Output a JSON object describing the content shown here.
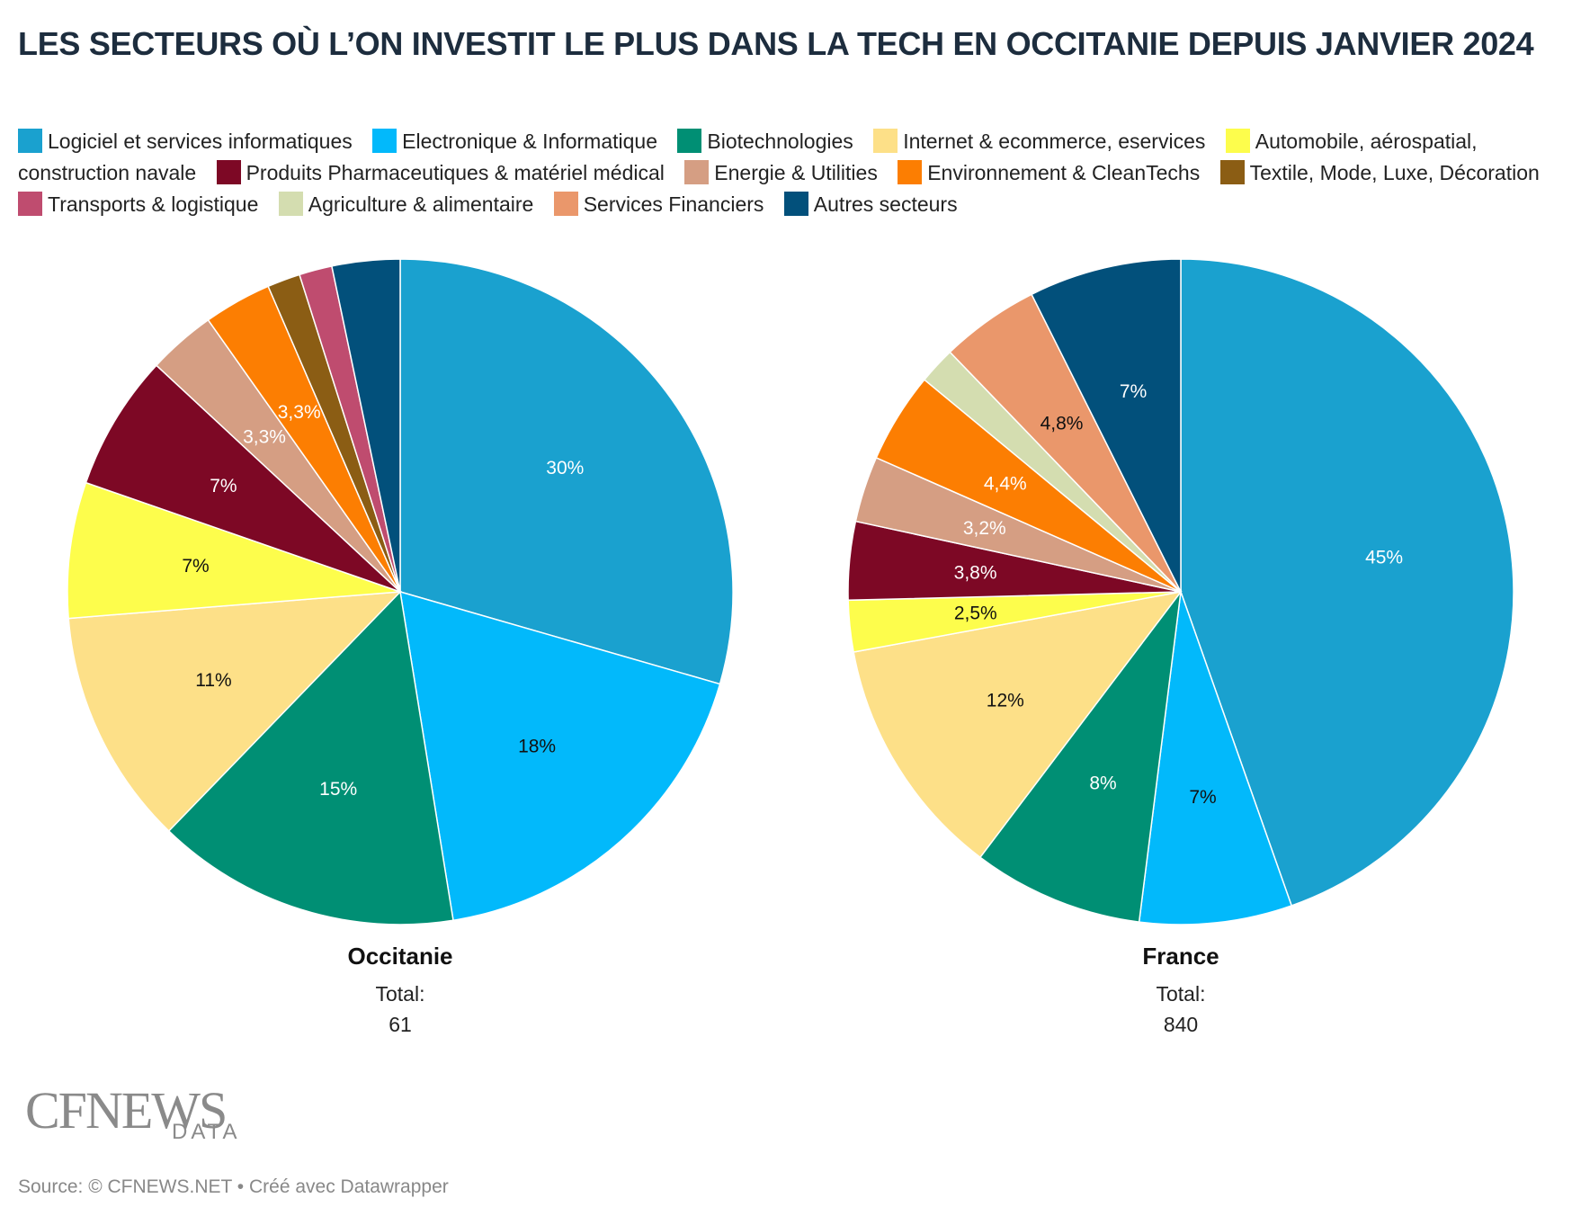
{
  "title": "LES SECTEURS OÙ L’ON INVESTIT LE PLUS DANS LA TECH EN OCCITANIE DEPUIS JANVIER 2024",
  "legend": [
    {
      "label": "Logiciel et services informatiques",
      "color": "#1aa1cf"
    },
    {
      "label": "Electronique & Informatique",
      "color": "#02b9fb"
    },
    {
      "label": "Biotechnologies",
      "color": "#008f74"
    },
    {
      "label": "Internet & ecommerce, eservices",
      "color": "#fde088"
    },
    {
      "label": "Automobile, aérospatial, construction navale",
      "color": "#fdfd4c"
    },
    {
      "label": "Produits Pharmaceutiques & matériel médical",
      "color": "#7d0825"
    },
    {
      "label": "Energie & Utilities",
      "color": "#d59e83"
    },
    {
      "label": "Environnement & CleanTechs",
      "color": "#fc7e02"
    },
    {
      "label": "Textile, Mode, Luxe, Décoration",
      "color": "#8b5d14"
    },
    {
      "label": "Transports & logistique",
      "color": "#bf4c6f"
    },
    {
      "label": "Agriculture & alimentaire",
      "color": "#d4ddb0"
    },
    {
      "label": "Services Financiers",
      "color": "#ea976b"
    },
    {
      "label": "Autres secteurs",
      "color": "#02507b"
    }
  ],
  "chart_data": [
    {
      "type": "pie",
      "name": "Occitanie",
      "total_label": "Total:",
      "total": "61",
      "slices": [
        {
          "category": "Logiciel et services informatiques",
          "value": 29.5,
          "label": "30%",
          "label_color": "#ffffff"
        },
        {
          "category": "Electronique & Informatique",
          "value": 18.0,
          "label": "18%",
          "label_color": "#111111"
        },
        {
          "category": "Biotechnologies",
          "value": 14.8,
          "label": "15%",
          "label_color": "#ffffff"
        },
        {
          "category": "Internet & ecommerce, eservices",
          "value": 11.5,
          "label": "11%",
          "label_color": "#111111"
        },
        {
          "category": "Automobile, aérospatial, construction navale",
          "value": 6.6,
          "label": "7%",
          "label_color": "#111111"
        },
        {
          "category": "Produits Pharmaceutiques & matériel médical",
          "value": 6.6,
          "label": "7%",
          "label_color": "#ffffff"
        },
        {
          "category": "Energie & Utilities",
          "value": 3.3,
          "label": "3,3%",
          "label_color": "#ffffff"
        },
        {
          "category": "Environnement & CleanTechs",
          "value": 3.3,
          "label": "3,3%",
          "label_color": "#ffffff"
        },
        {
          "category": "Textile, Mode, Luxe, Décoration",
          "value": 1.6,
          "label": "",
          "label_color": "#ffffff"
        },
        {
          "category": "Transports & logistique",
          "value": 1.6,
          "label": "",
          "label_color": "#ffffff"
        },
        {
          "category": "Autres secteurs",
          "value": 3.3,
          "label": "",
          "label_color": "#ffffff"
        }
      ]
    },
    {
      "type": "pie",
      "name": "France",
      "total_label": "Total:",
      "total": "840",
      "slices": [
        {
          "category": "Logiciel et services informatiques",
          "value": 44.6,
          "label": "45%",
          "label_color": "#ffffff"
        },
        {
          "category": "Electronique & Informatique",
          "value": 7.4,
          "label": "7%",
          "label_color": "#111111"
        },
        {
          "category": "Biotechnologies",
          "value": 8.3,
          "label": "8%",
          "label_color": "#ffffff"
        },
        {
          "category": "Internet & ecommerce, eservices",
          "value": 11.8,
          "label": "12%",
          "label_color": "#111111"
        },
        {
          "category": "Automobile, aérospatial, construction navale",
          "value": 2.5,
          "label": "2,5%",
          "label_color": "#111111"
        },
        {
          "category": "Produits Pharmaceutiques & matériel médical",
          "value": 3.8,
          "label": "3,8%",
          "label_color": "#ffffff"
        },
        {
          "category": "Energie & Utilities",
          "value": 3.2,
          "label": "3,2%",
          "label_color": "#ffffff"
        },
        {
          "category": "Environnement & CleanTechs",
          "value": 4.4,
          "label": "4,4%",
          "label_color": "#ffffff"
        },
        {
          "category": "Agriculture & alimentaire",
          "value": 1.8,
          "label": "",
          "label_color": "#111111"
        },
        {
          "category": "Services Financiers",
          "value": 4.8,
          "label": "4,8%",
          "label_color": "#111111"
        },
        {
          "category": "Autres secteurs",
          "value": 7.4,
          "label": "7%",
          "label_color": "#ffffff"
        }
      ]
    }
  ],
  "logo": {
    "main": "CFNEWS",
    "sub": "DATA"
  },
  "source": "Source: © CFNEWS.NET • Créé avec Datawrapper"
}
